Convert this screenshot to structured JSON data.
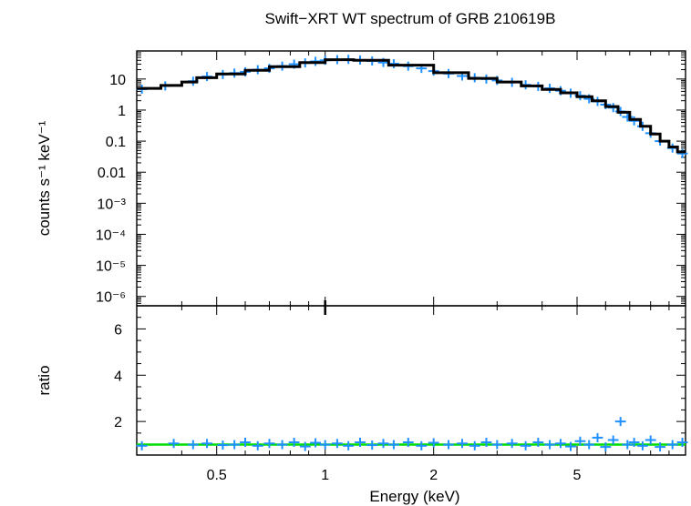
{
  "chart_data": [
    {
      "type": "line",
      "panel": "spectrum",
      "title": "Swift−XRT WT spectrum of GRB 210619B",
      "ylabel": "counts s⁻¹ keV⁻¹",
      "xscale": "log",
      "yscale": "log",
      "xlim": [
        0.3,
        10
      ],
      "ylim": [
        5e-07,
        80
      ],
      "x_ticks": [
        0.5,
        1,
        2,
        5
      ],
      "y_ticks": [
        {
          "value": 10,
          "label": "10"
        },
        {
          "value": 1,
          "label": "1"
        },
        {
          "value": 0.1,
          "label": "0.1"
        },
        {
          "value": 0.01,
          "label": "0.01"
        },
        {
          "value": 0.001,
          "label": "10⁻³"
        },
        {
          "value": 0.0001,
          "label": "10⁻⁴"
        },
        {
          "value": 1e-05,
          "label": "10⁻⁵"
        },
        {
          "value": 1e-06,
          "label": "10⁻⁶"
        }
      ],
      "series": [
        {
          "role": "model",
          "color": "#000000",
          "steps": [
            [
              0.3,
              0.35,
              5.0
            ],
            [
              0.35,
              0.4,
              6.2
            ],
            [
              0.4,
              0.44,
              8.0
            ],
            [
              0.44,
              0.5,
              11.0
            ],
            [
              0.5,
              0.6,
              14.5
            ],
            [
              0.6,
              0.7,
              19.0
            ],
            [
              0.7,
              0.85,
              25.0
            ],
            [
              0.85,
              1.0,
              34.0
            ],
            [
              1.0,
              1.2,
              42.0
            ],
            [
              1.2,
              1.5,
              40.0
            ],
            [
              1.5,
              2.0,
              28.0
            ],
            [
              2.0,
              2.5,
              16.0
            ],
            [
              2.5,
              3.0,
              10.5
            ],
            [
              3.0,
              3.5,
              8.0
            ],
            [
              3.5,
              4.0,
              6.0
            ],
            [
              4.0,
              4.5,
              4.6
            ],
            [
              4.5,
              5.0,
              3.6
            ],
            [
              5.0,
              5.5,
              2.7
            ],
            [
              5.5,
              6.0,
              2.0
            ],
            [
              6.0,
              6.5,
              1.3
            ],
            [
              6.5,
              7.0,
              0.85
            ],
            [
              7.0,
              7.5,
              0.5
            ],
            [
              7.5,
              8.0,
              0.3
            ],
            [
              8.0,
              8.5,
              0.17
            ],
            [
              8.5,
              9.0,
              0.1
            ],
            [
              9.0,
              9.5,
              0.065
            ],
            [
              9.5,
              10.0,
              0.045
            ]
          ]
        },
        {
          "role": "data",
          "color": "#1e90ff",
          "points": [
            [
              0.31,
              4.7
            ],
            [
              0.36,
              6.0
            ],
            [
              0.43,
              8.5
            ],
            [
              0.47,
              12.0
            ],
            [
              0.52,
              14.0
            ],
            [
              0.56,
              15.5
            ],
            [
              0.6,
              17.0
            ],
            [
              0.65,
              20.0
            ],
            [
              0.7,
              22.0
            ],
            [
              0.76,
              26.0
            ],
            [
              0.82,
              30.0
            ],
            [
              0.88,
              33.0
            ],
            [
              0.94,
              37.0
            ],
            [
              1.0,
              40.0
            ],
            [
              1.08,
              42.0
            ],
            [
              1.16,
              43.0
            ],
            [
              1.25,
              41.0
            ],
            [
              1.35,
              38.0
            ],
            [
              1.45,
              34.0
            ],
            [
              1.55,
              31.0
            ],
            [
              1.7,
              26.0
            ],
            [
              1.85,
              22.0
            ],
            [
              2.0,
              18.0
            ],
            [
              2.2,
              15.0
            ],
            [
              2.4,
              12.5
            ],
            [
              2.6,
              11.0
            ],
            [
              2.8,
              10.0
            ],
            [
              3.0,
              9.0
            ],
            [
              3.3,
              7.8
            ],
            [
              3.6,
              6.5
            ],
            [
              3.9,
              5.8
            ],
            [
              4.2,
              5.0
            ],
            [
              4.5,
              4.2
            ],
            [
              4.8,
              3.5
            ],
            [
              5.1,
              2.9
            ],
            [
              5.4,
              2.3
            ],
            [
              5.7,
              1.9
            ],
            [
              6.0,
              1.5
            ],
            [
              6.3,
              1.2
            ],
            [
              6.6,
              0.9
            ],
            [
              6.9,
              0.6
            ],
            [
              7.2,
              0.45
            ],
            [
              7.6,
              0.3
            ],
            [
              8.0,
              0.18
            ],
            [
              8.5,
              0.1
            ],
            [
              9.2,
              0.06
            ],
            [
              9.8,
              0.04
            ]
          ]
        }
      ]
    },
    {
      "type": "scatter",
      "panel": "ratio",
      "xlabel": "Energy (keV)",
      "ylabel": "ratio",
      "xscale": "log",
      "xlim": [
        0.3,
        10
      ],
      "ylim": [
        0.55,
        7.0
      ],
      "x_ticks": [
        0.5,
        1,
        2,
        5
      ],
      "y_ticks": [
        2,
        4,
        6
      ],
      "reference_line": {
        "y": 1.0,
        "color": "#00dd00"
      },
      "series": [
        {
          "role": "ratio",
          "color": "#1e90ff",
          "points": [
            [
              0.31,
              0.95
            ],
            [
              0.38,
              1.05
            ],
            [
              0.43,
              1.0
            ],
            [
              0.47,
              1.05
            ],
            [
              0.52,
              0.98
            ],
            [
              0.56,
              1.0
            ],
            [
              0.6,
              1.1
            ],
            [
              0.65,
              0.95
            ],
            [
              0.7,
              1.05
            ],
            [
              0.76,
              1.0
            ],
            [
              0.82,
              1.1
            ],
            [
              0.88,
              0.92
            ],
            [
              0.94,
              1.08
            ],
            [
              1.0,
              1.0
            ],
            [
              1.08,
              1.05
            ],
            [
              1.16,
              0.95
            ],
            [
              1.25,
              1.1
            ],
            [
              1.35,
              0.98
            ],
            [
              1.45,
              1.05
            ],
            [
              1.55,
              1.0
            ],
            [
              1.7,
              1.1
            ],
            [
              1.85,
              0.95
            ],
            [
              2.0,
              1.08
            ],
            [
              2.2,
              1.0
            ],
            [
              2.4,
              1.05
            ],
            [
              2.6,
              0.95
            ],
            [
              2.8,
              1.1
            ],
            [
              3.0,
              1.0
            ],
            [
              3.3,
              1.05
            ],
            [
              3.6,
              0.95
            ],
            [
              3.9,
              1.1
            ],
            [
              4.2,
              1.0
            ],
            [
              4.5,
              1.05
            ],
            [
              4.8,
              0.92
            ],
            [
              5.1,
              1.15
            ],
            [
              5.4,
              1.0
            ],
            [
              5.7,
              1.3
            ],
            [
              6.0,
              0.9
            ],
            [
              6.3,
              1.2
            ],
            [
              6.6,
              2.0
            ],
            [
              6.9,
              1.0
            ],
            [
              7.2,
              1.1
            ],
            [
              7.6,
              0.95
            ],
            [
              8.0,
              1.2
            ],
            [
              8.5,
              0.9
            ],
            [
              9.2,
              1.0
            ],
            [
              9.8,
              1.1
            ]
          ]
        }
      ]
    }
  ]
}
